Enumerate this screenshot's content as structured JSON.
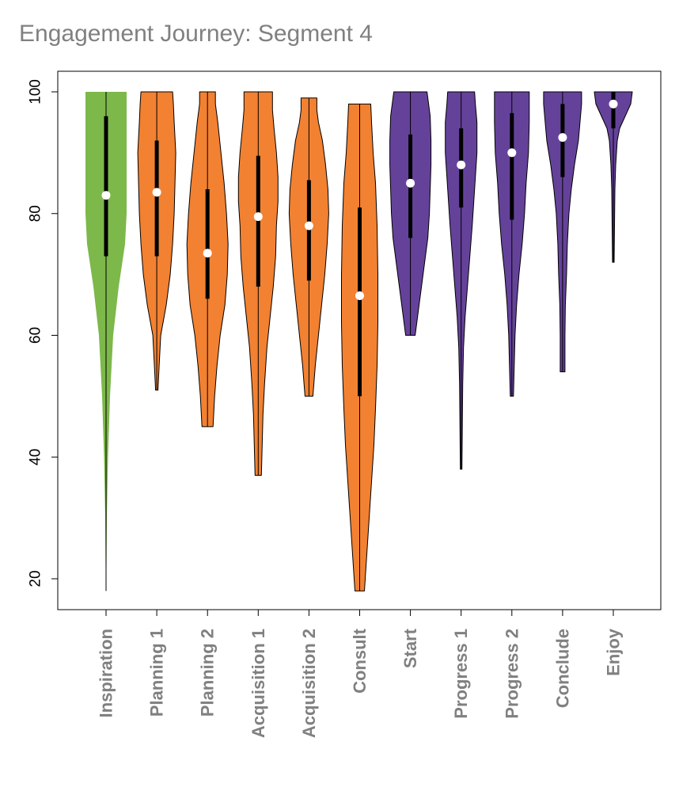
{
  "chart_data": {
    "type": "violin",
    "title": "Engagement Journey: Segment 4",
    "xlabel": "",
    "ylabel": "",
    "ylim": [
      15,
      103
    ],
    "yticks": [
      20,
      40,
      60,
      80,
      100
    ],
    "grid": false,
    "legend": "none",
    "colors": {
      "green": "#7db84a",
      "orange": "#f28132",
      "purple": "#65429a",
      "axis_label": "#808080",
      "median_dot": "#ffffff",
      "box": "#000000"
    },
    "categories": [
      {
        "name": "Inspiration",
        "color": "green",
        "min": 18,
        "max": 100,
        "q1": 73,
        "median": 83,
        "q3": 96,
        "profile": [
          [
            18,
            0.3
          ],
          [
            30,
            1.0
          ],
          [
            40,
            2.5
          ],
          [
            50,
            5
          ],
          [
            60,
            9
          ],
          [
            68,
            16
          ],
          [
            75,
            24
          ],
          [
            80,
            26
          ],
          [
            88,
            26
          ],
          [
            95,
            26
          ],
          [
            100,
            26
          ]
        ]
      },
      {
        "name": "Planning 1",
        "color": "orange",
        "min": 51,
        "max": 100,
        "q1": 73,
        "median": 83.5,
        "q3": 92,
        "profile": [
          [
            51,
            1.5
          ],
          [
            55,
            3
          ],
          [
            60,
            5
          ],
          [
            65,
            12
          ],
          [
            70,
            17
          ],
          [
            75,
            20
          ],
          [
            80,
            22
          ],
          [
            85,
            23
          ],
          [
            90,
            24
          ],
          [
            95,
            22
          ],
          [
            98,
            21
          ],
          [
            100,
            20
          ]
        ]
      },
      {
        "name": "Planning 2",
        "color": "orange",
        "min": 45,
        "max": 100,
        "q1": 66,
        "median": 73.5,
        "q3": 84,
        "profile": [
          [
            45,
            7
          ],
          [
            50,
            9
          ],
          [
            55,
            12
          ],
          [
            60,
            16
          ],
          [
            65,
            22
          ],
          [
            70,
            25
          ],
          [
            75,
            26
          ],
          [
            80,
            24
          ],
          [
            85,
            21
          ],
          [
            90,
            17
          ],
          [
            95,
            13
          ],
          [
            98,
            10
          ],
          [
            100,
            10
          ]
        ]
      },
      {
        "name": "Acquisition 1",
        "color": "orange",
        "min": 37,
        "max": 100,
        "q1": 68,
        "median": 79.5,
        "q3": 89.5,
        "profile": [
          [
            37,
            4
          ],
          [
            42,
            5
          ],
          [
            47,
            6
          ],
          [
            52,
            8
          ],
          [
            58,
            11
          ],
          [
            63,
            15
          ],
          [
            68,
            19
          ],
          [
            73,
            22
          ],
          [
            78,
            23
          ],
          [
            82,
            25
          ],
          [
            86,
            25
          ],
          [
            90,
            23
          ],
          [
            94,
            20
          ],
          [
            97,
            18
          ],
          [
            100,
            18
          ]
        ]
      },
      {
        "name": "Acquisition 2",
        "color": "orange",
        "min": 50,
        "max": 99,
        "q1": 69,
        "median": 78,
        "q3": 85.5,
        "profile": [
          [
            50,
            5
          ],
          [
            55,
            8
          ],
          [
            60,
            12
          ],
          [
            65,
            16
          ],
          [
            70,
            20
          ],
          [
            75,
            23
          ],
          [
            80,
            25
          ],
          [
            84,
            24
          ],
          [
            88,
            21
          ],
          [
            92,
            17
          ],
          [
            95,
            12
          ],
          [
            97,
            10
          ],
          [
            99,
            10
          ]
        ]
      },
      {
        "name": "Consult",
        "color": "orange",
        "min": 18,
        "max": 98,
        "q1": 50,
        "median": 66.5,
        "q3": 81,
        "profile": [
          [
            18,
            6
          ],
          [
            24,
            9
          ],
          [
            30,
            12
          ],
          [
            36,
            15
          ],
          [
            42,
            18
          ],
          [
            48,
            20
          ],
          [
            55,
            22
          ],
          [
            62,
            23
          ],
          [
            70,
            23
          ],
          [
            78,
            22
          ],
          [
            85,
            20
          ],
          [
            90,
            17
          ],
          [
            95,
            15
          ],
          [
            98,
            14
          ]
        ]
      },
      {
        "name": "Start",
        "color": "purple",
        "min": 60,
        "max": 100,
        "q1": 76,
        "median": 85,
        "q3": 93,
        "profile": [
          [
            60,
            6
          ],
          [
            64,
            10
          ],
          [
            68,
            14
          ],
          [
            72,
            18
          ],
          [
            76,
            22
          ],
          [
            80,
            24
          ],
          [
            84,
            25
          ],
          [
            88,
            26
          ],
          [
            92,
            26
          ],
          [
            96,
            25
          ],
          [
            99,
            22
          ],
          [
            100,
            21
          ]
        ]
      },
      {
        "name": "Progress 1",
        "color": "purple",
        "min": 38,
        "max": 100,
        "q1": 81,
        "median": 88,
        "q3": 94,
        "profile": [
          [
            38,
            1
          ],
          [
            45,
            1.5
          ],
          [
            52,
            2
          ],
          [
            58,
            3
          ],
          [
            63,
            5
          ],
          [
            68,
            8
          ],
          [
            73,
            11
          ],
          [
            78,
            14
          ],
          [
            82,
            16
          ],
          [
            86,
            18
          ],
          [
            90,
            20
          ],
          [
            95,
            20
          ],
          [
            98,
            18
          ],
          [
            100,
            17
          ]
        ]
      },
      {
        "name": "Progress 2",
        "color": "purple",
        "min": 50,
        "max": 100,
        "q1": 79,
        "median": 90,
        "q3": 96.5,
        "profile": [
          [
            50,
            2
          ],
          [
            55,
            3
          ],
          [
            60,
            4
          ],
          [
            65,
            6
          ],
          [
            70,
            9
          ],
          [
            75,
            13
          ],
          [
            80,
            16
          ],
          [
            85,
            18
          ],
          [
            90,
            21
          ],
          [
            95,
            22
          ],
          [
            98,
            22
          ],
          [
            100,
            22
          ]
        ]
      },
      {
        "name": "Conclude",
        "color": "purple",
        "min": 54,
        "max": 100,
        "q1": 86,
        "median": 92.5,
        "q3": 98,
        "profile": [
          [
            54,
            3
          ],
          [
            60,
            3
          ],
          [
            65,
            3.5
          ],
          [
            70,
            5
          ],
          [
            75,
            6
          ],
          [
            80,
            8
          ],
          [
            84,
            11
          ],
          [
            88,
            15
          ],
          [
            92,
            20
          ],
          [
            95,
            22
          ],
          [
            98,
            24
          ],
          [
            100,
            24
          ]
        ]
      },
      {
        "name": "Enjoy",
        "color": "purple",
        "min": 72,
        "max": 100,
        "q1": 94,
        "median": 98,
        "q3": 100,
        "profile": [
          [
            72,
            1
          ],
          [
            78,
            1.5
          ],
          [
            84,
            2
          ],
          [
            88,
            3
          ],
          [
            92,
            5
          ],
          [
            94,
            8
          ],
          [
            96,
            15
          ],
          [
            98,
            22
          ],
          [
            100,
            24
          ]
        ]
      }
    ]
  }
}
